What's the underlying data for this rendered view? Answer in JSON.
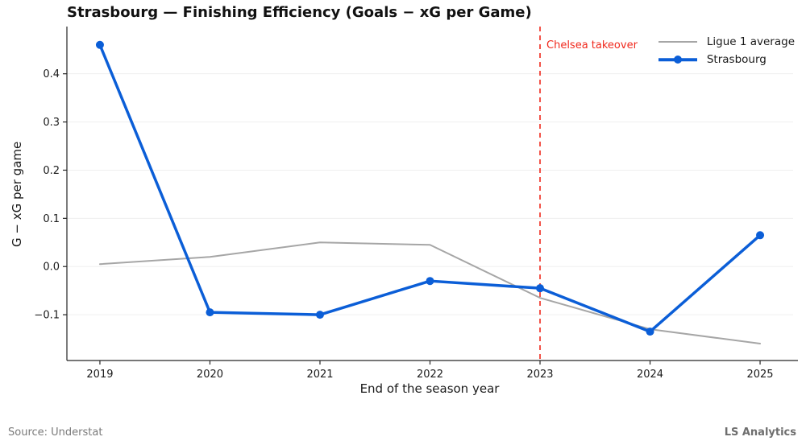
{
  "title": "Strasbourg — Finishing Efficiency (Goals − xG per Game)",
  "footer": {
    "source": "Source: Understat",
    "brand": "LS Analytics"
  },
  "colors": {
    "strasbourg_blue": "#0b5ed7",
    "league_gray": "#a6a6a6",
    "annotation_red": "#f0281c",
    "gridline": "#efefef",
    "spine": "#262626",
    "tick_text": "#1a1a1a"
  },
  "chart_data": {
    "type": "line",
    "title": "Strasbourg — Finishing Efficiency (Goals − xG per Game)",
    "xlabel": "End of the season year",
    "ylabel": "G − xG per game",
    "x": [
      2019,
      2020,
      2021,
      2022,
      2023,
      2024,
      2025
    ],
    "x_tick_labels": [
      "2019",
      "2020",
      "2021",
      "2022",
      "2023",
      "2024",
      "2025"
    ],
    "y_ticks": [
      {
        "value": 0.4,
        "label": "0.4"
      },
      {
        "value": 0.3,
        "label": "0.3"
      },
      {
        "value": 0.2,
        "label": "0.2"
      },
      {
        "value": 0.1,
        "label": "0.1"
      },
      {
        "value": 0.0,
        "label": "0.0"
      },
      {
        "value": -0.1,
        "label": "−0.1"
      }
    ],
    "xlim": [
      2018.7,
      2025.3
    ],
    "ylim": [
      -0.195,
      0.498
    ],
    "grid": true,
    "legend_position": "upper right",
    "series": [
      {
        "name": "Ligue 1 average",
        "color": "#a6a6a6",
        "line_width": 2,
        "marker": false,
        "values": [
          0.005,
          0.02,
          0.05,
          0.045,
          -0.065,
          -0.13,
          -0.16
        ]
      },
      {
        "name": "Strasbourg",
        "color": "#0b5ed7",
        "line_width": 3.5,
        "marker": true,
        "marker_radius": 5,
        "values": [
          0.46,
          -0.095,
          -0.1,
          -0.03,
          -0.045,
          -0.135,
          0.065
        ]
      }
    ],
    "annotation": {
      "text": "Chelsea takeover",
      "x": 2023,
      "color": "#f0281c",
      "line_style": "dashed"
    }
  }
}
